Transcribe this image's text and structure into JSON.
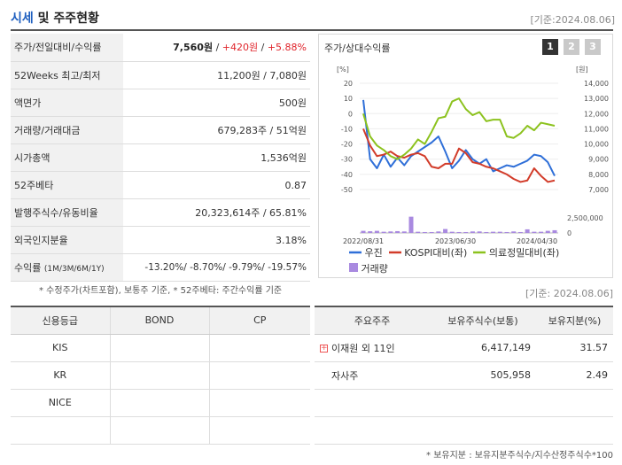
{
  "header": {
    "title_hl": "시세",
    "title_rest": " 및 주주현황",
    "date": "[기준:2024.08.06]"
  },
  "summary": {
    "rows": [
      {
        "label": "주가/전일대비/수익률",
        "price": "7,560원",
        "sep1": " / ",
        "change": "+420원",
        "sep2": " / ",
        "pct": "+5.88%"
      },
      {
        "label": "52Weeks 최고/최저",
        "value": "11,200원 / 7,080원"
      },
      {
        "label": "액면가",
        "value": "500원"
      },
      {
        "label": "거래량/거래대금",
        "value": "679,283주 / 51억원"
      },
      {
        "label": "시가총액",
        "value": "1,536억원"
      },
      {
        "label": "52주베타",
        "value": "0.87"
      },
      {
        "label": "발행주식수/유동비율",
        "value": "20,323,614주 / 65.81%"
      },
      {
        "label": "외국인지분율",
        "value": "3.18%"
      },
      {
        "label": "수익률",
        "label_sub": "(1M/3M/6M/1Y)",
        "value": "-13.20%/ -8.70%/ -9.79%/ -19.57%"
      }
    ],
    "note": "* 수정주가(차트포함), 보통주 기준, * 52주베타: 주간수익률 기준"
  },
  "chart_panel": {
    "title": "주가/상대수익률",
    "pages": [
      "1",
      "2",
      "3"
    ],
    "active_page": 0,
    "legend": {
      "series1": "우진",
      "series2": "KOSPI대비(좌)",
      "series3": "의료정밀대비(좌)",
      "series4": "거래량"
    },
    "colors": {
      "stock": "#2f6fd8",
      "kospi": "#d23c2a",
      "sector": "#8cc21e",
      "volume": "#a98ae0",
      "active_page": "#333333",
      "inactive_page": "#c9c9c9"
    }
  },
  "chart_data": {
    "type": "line",
    "left_axis": {
      "unit": "[%]",
      "ticks": [
        20,
        10,
        0,
        -10,
        -20,
        -30,
        -40,
        -50
      ],
      "range": [
        -50,
        20
      ]
    },
    "right_axis": {
      "unit": "[원]",
      "ticks": [
        "14,000",
        "13,000",
        "12,000",
        "11,000",
        "10,000",
        "9,000",
        "8,000",
        "7,000"
      ],
      "range": [
        7000,
        14000
      ]
    },
    "volume_axis": {
      "ticks": [
        "2,500,000",
        "0"
      ],
      "range": [
        0,
        2500000
      ]
    },
    "x_labels": [
      "2022/08/31",
      "2023/06/30",
      "2024/04/30"
    ],
    "series": [
      {
        "name": "우진",
        "axis": "right",
        "values": [
          12900,
          9000,
          8400,
          9300,
          8500,
          9100,
          8600,
          9200,
          9500,
          9800,
          10100,
          10500,
          9500,
          8400,
          8900,
          9600,
          9000,
          8700,
          9000,
          8200,
          8400,
          8600,
          8500,
          8700,
          8900,
          9300,
          9200,
          8800,
          7900
        ]
      },
      {
        "name": "KOSPI대비(좌)",
        "axis": "left",
        "values": [
          -10,
          -21,
          -28,
          -27,
          -25,
          -28,
          -29,
          -27,
          -26,
          -28,
          -35,
          -36,
          -33,
          -33,
          -23,
          -26,
          -32,
          -33,
          -35,
          -36,
          -38,
          -40,
          -43,
          -45,
          -44,
          -36,
          -41,
          -45,
          -44
        ]
      },
      {
        "name": "의료정밀대비(좌)",
        "axis": "left",
        "values": [
          0,
          -15,
          -21,
          -24,
          -28,
          -30,
          -27,
          -23,
          -17,
          -20,
          -12,
          -3,
          -2,
          8,
          10,
          3,
          -1,
          1,
          -5,
          -4,
          -4,
          -15,
          -16,
          -13,
          -8,
          -11,
          -6,
          -7,
          -8
        ]
      },
      {
        "name": "거래량",
        "axis": "volume",
        "values": [
          350000,
          280000,
          350000,
          200000,
          250000,
          300000,
          250000,
          2700000,
          200000,
          150000,
          150000,
          250000,
          650000,
          200000,
          150000,
          150000,
          250000,
          250000,
          150000,
          200000,
          200000,
          150000,
          250000,
          150000,
          600000,
          200000,
          200000,
          350000,
          450000
        ]
      }
    ]
  },
  "credit_table": {
    "headers": [
      "신용등급",
      "BOND",
      "CP"
    ],
    "rows": [
      [
        "KIS",
        "",
        ""
      ],
      [
        "KR",
        "",
        ""
      ],
      [
        "NICE",
        "",
        ""
      ],
      [
        "",
        "",
        ""
      ]
    ]
  },
  "holder_table": {
    "date": "[기준: 2024.08.06]",
    "headers": [
      "주요주주",
      "보유주식수(보통)",
      "보유지분(%)"
    ],
    "rows": [
      {
        "name": "이재원 외 11인",
        "shares": "6,417,149",
        "pct": "31.57"
      },
      {
        "name": "자사주",
        "shares": "505,958",
        "pct": "2.49"
      }
    ],
    "note": "* 보유지분 : 보유지분주식수/지수산정주식수*100"
  }
}
